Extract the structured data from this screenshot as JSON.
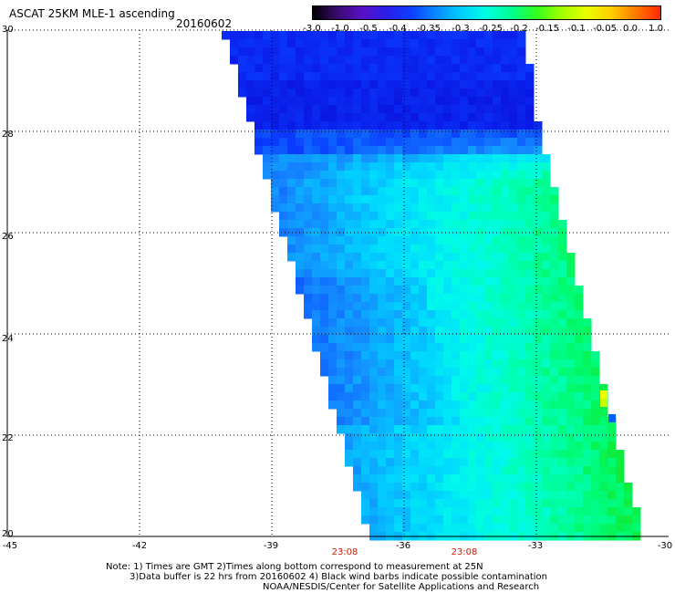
{
  "title": "ASCAT 25KM MLE-1 ascending",
  "date": "20160602",
  "colorbar": {
    "labels": [
      "-3.0",
      "-1.0",
      "-0.5",
      "-0.4",
      "-0.35",
      "-0.3",
      "-0.25",
      "-0.2",
      "-0.15",
      "-0.1",
      "-0.05",
      "0.0",
      "1.0"
    ],
    "colors": [
      "#000000",
      "#3b0a6e",
      "#5a10c8",
      "#2a1ee8",
      "#0a40ff",
      "#0a8cff",
      "#00d0ff",
      "#00ffe0",
      "#00ff90",
      "#30ff20",
      "#a0ff00",
      "#e8ff00",
      "#ffd000",
      "#ff7a00",
      "#ff2800"
    ]
  },
  "axes": {
    "lat_labels": [
      "30",
      "28",
      "26",
      "24",
      "22",
      "20"
    ],
    "lon_labels": [
      "-45",
      "-42",
      "-39",
      "-36",
      "-33",
      "-30"
    ],
    "lat_range": [
      20,
      30
    ],
    "lon_range": [
      -45,
      -30
    ]
  },
  "times": [
    "23:08",
    "23:08"
  ],
  "notes": [
    "Note: 1) Times are GMT 2)Times along bottom correspond to measurement at 25N",
    "3)Data buffer is 22 hrs from 20160602 4) Black wind barbs indicate possible contamination",
    "NOAA/NESDIS/Center for Satellite Applications and Research"
  ]
}
